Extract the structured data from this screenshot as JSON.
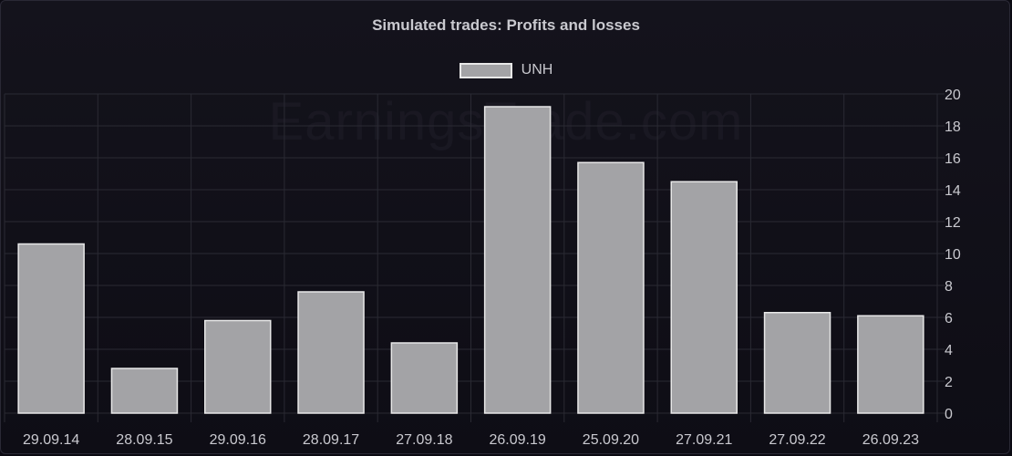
{
  "chart_data": {
    "type": "bar",
    "title": "Simulated trades: Profits and losses",
    "watermark": "EarningsTrade.com",
    "legend": {
      "position": "top-center"
    },
    "categories": [
      "29.09.14",
      "28.09.15",
      "29.09.16",
      "28.09.17",
      "27.09.18",
      "26.09.19",
      "25.09.20",
      "27.09.21",
      "27.09.22",
      "26.09.23"
    ],
    "series": [
      {
        "name": "UNH",
        "color": "#a3a3a6",
        "border_color": "#e8e8e8",
        "values": [
          10.6,
          2.8,
          5.8,
          7.6,
          4.4,
          19.2,
          15.7,
          14.5,
          6.3,
          6.1
        ]
      }
    ],
    "y_axis": {
      "position": "right",
      "ylim": [
        0,
        20
      ],
      "ticks": [
        "0",
        "2",
        "4",
        "6",
        "8",
        "10",
        "12",
        "14",
        "16",
        "18",
        "20"
      ]
    },
    "grid": true,
    "xlabel": "",
    "ylabel": ""
  }
}
